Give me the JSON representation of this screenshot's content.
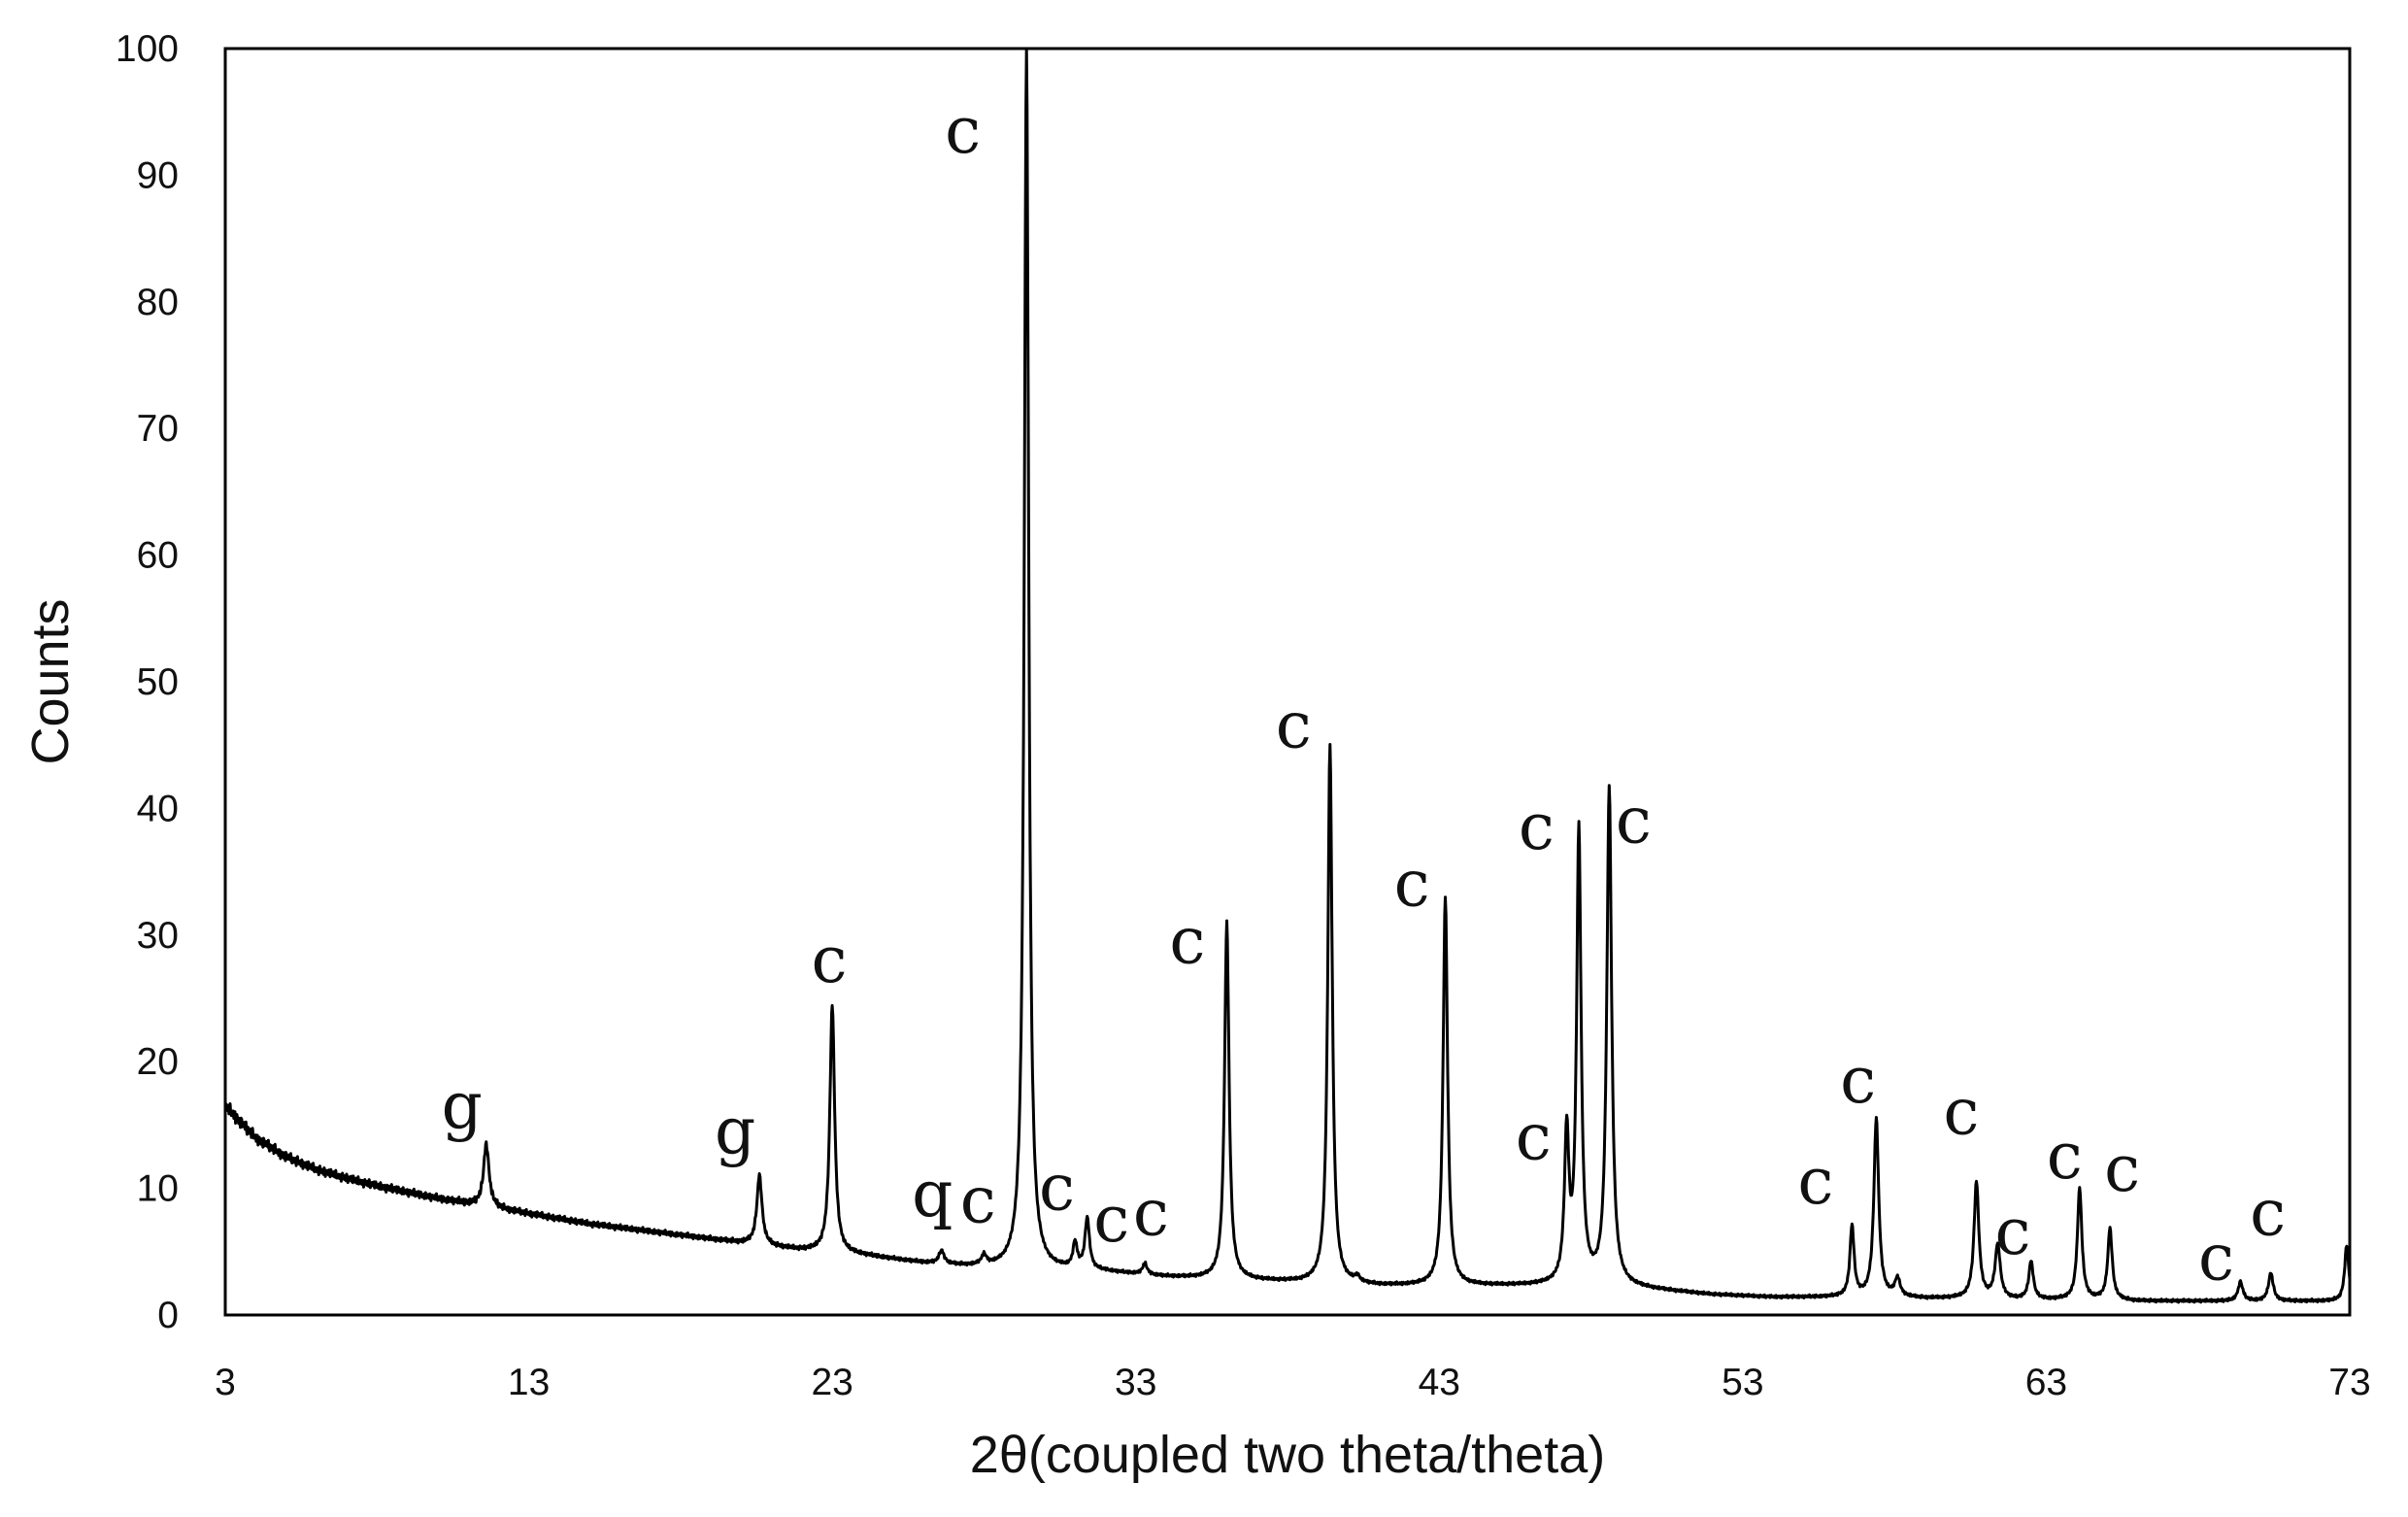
{
  "chart_data": {
    "type": "line",
    "title": "",
    "xlabel": "2θ(coupled two theta/theta)",
    "ylabel": "Counts",
    "xlim": [
      3,
      73
    ],
    "ylim": [
      0,
      100
    ],
    "xticks": [
      "3",
      "13",
      "23",
      "33",
      "43",
      "53",
      "63",
      "73"
    ],
    "yticks": [
      "0",
      "10",
      "20",
      "30",
      "40",
      "50",
      "60",
      "70",
      "80",
      "90",
      "100"
    ],
    "grid": false,
    "legend": "none",
    "line_color": "#000000",
    "baseline": [
      [
        3,
        16.5
      ],
      [
        4,
        14
      ],
      [
        5,
        12.5
      ],
      [
        6,
        11.5
      ],
      [
        7,
        10.8
      ],
      [
        8,
        10.2
      ],
      [
        9,
        9.7
      ],
      [
        10,
        9.2
      ],
      [
        11,
        8.8
      ],
      [
        12,
        8.4
      ],
      [
        13,
        8.0
      ],
      [
        14,
        7.6
      ],
      [
        15,
        7.2
      ],
      [
        16,
        6.9
      ],
      [
        17,
        6.6
      ],
      [
        18,
        6.3
      ],
      [
        19,
        6.0
      ],
      [
        20,
        5.7
      ],
      [
        21,
        5.4
      ],
      [
        22,
        5.1
      ],
      [
        23,
        4.9
      ],
      [
        24,
        4.7
      ],
      [
        25,
        4.4
      ],
      [
        26,
        4.1
      ],
      [
        27,
        3.9
      ],
      [
        28,
        3.7
      ],
      [
        29,
        3.6
      ],
      [
        30,
        3.5
      ],
      [
        31,
        3.5
      ],
      [
        32,
        3.4
      ],
      [
        33,
        3.2
      ],
      [
        34,
        3.0
      ],
      [
        35,
        2.9
      ],
      [
        36,
        2.8
      ],
      [
        37,
        2.7
      ],
      [
        38,
        2.6
      ],
      [
        39,
        2.5
      ],
      [
        40,
        2.4
      ],
      [
        41,
        2.3
      ],
      [
        42,
        2.3
      ],
      [
        43,
        2.3
      ],
      [
        44,
        2.3
      ],
      [
        45,
        2.3
      ],
      [
        46,
        2.3
      ],
      [
        47,
        2.3
      ],
      [
        48,
        2.3
      ],
      [
        49,
        2.2
      ],
      [
        50,
        2.0
      ],
      [
        51,
        1.8
      ],
      [
        52,
        1.6
      ],
      [
        53,
        1.5
      ],
      [
        54,
        1.4
      ],
      [
        55,
        1.4
      ],
      [
        56,
        1.4
      ],
      [
        57,
        1.4
      ],
      [
        58,
        1.4
      ],
      [
        59,
        1.3
      ],
      [
        60,
        1.3
      ],
      [
        61,
        1.3
      ],
      [
        62,
        1.2
      ],
      [
        63,
        1.2
      ],
      [
        64,
        1.2
      ],
      [
        65,
        1.2
      ],
      [
        66,
        1.1
      ],
      [
        67,
        1.1
      ],
      [
        68,
        1.1
      ],
      [
        69,
        1.1
      ],
      [
        70,
        1.1
      ],
      [
        71,
        1.1
      ],
      [
        72,
        1.1
      ],
      [
        73,
        1.1
      ]
    ],
    "peaks": [
      {
        "x": 11.6,
        "y": 13.5,
        "w": 0.16
      },
      {
        "x": 20.6,
        "y": 11.0,
        "w": 0.15
      },
      {
        "x": 23.0,
        "y": 24.5,
        "w": 0.14
      },
      {
        "x": 26.6,
        "y": 5.0,
        "w": 0.15
      },
      {
        "x": 28.0,
        "y": 4.5,
        "w": 0.15
      },
      {
        "x": 29.4,
        "y": 100,
        "w": 0.13
      },
      {
        "x": 31.0,
        "y": 5.5,
        "w": 0.12
      },
      {
        "x": 31.4,
        "y": 7.5,
        "w": 0.13
      },
      {
        "x": 33.3,
        "y": 4.0,
        "w": 0.13
      },
      {
        "x": 36.0,
        "y": 31.0,
        "w": 0.13
      },
      {
        "x": 39.4,
        "y": 45.0,
        "w": 0.13
      },
      {
        "x": 40.3,
        "y": 2.8,
        "w": 0.15
      },
      {
        "x": 43.2,
        "y": 33.0,
        "w": 0.13
      },
      {
        "x": 47.2,
        "y": 14.0,
        "w": 0.13
      },
      {
        "x": 47.6,
        "y": 38.0,
        "w": 0.13
      },
      {
        "x": 48.6,
        "y": 41.5,
        "w": 0.14
      },
      {
        "x": 56.6,
        "y": 7.0,
        "w": 0.12
      },
      {
        "x": 57.4,
        "y": 15.5,
        "w": 0.14
      },
      {
        "x": 58.1,
        "y": 2.8,
        "w": 0.15
      },
      {
        "x": 60.7,
        "y": 10.5,
        "w": 0.14
      },
      {
        "x": 61.4,
        "y": 5.5,
        "w": 0.15
      },
      {
        "x": 62.5,
        "y": 4.2,
        "w": 0.13
      },
      {
        "x": 64.1,
        "y": 10.0,
        "w": 0.13
      },
      {
        "x": 65.1,
        "y": 6.8,
        "w": 0.13
      },
      {
        "x": 69.4,
        "y": 2.6,
        "w": 0.14
      },
      {
        "x": 70.4,
        "y": 3.3,
        "w": 0.14
      },
      {
        "x": 72.9,
        "y": 5.5,
        "w": 0.12
      }
    ],
    "annotations": [
      {
        "text": "g",
        "x": 10.8,
        "y": 16.5
      },
      {
        "text": "g",
        "x": 19.8,
        "y": 14.5
      },
      {
        "text": "c",
        "x": 22.9,
        "y": 28.0
      },
      {
        "text": "q",
        "x": 26.3,
        "y": 9.5
      },
      {
        "text": "c",
        "x": 27.8,
        "y": 9.0
      },
      {
        "text": "c",
        "x": 27.3,
        "y": 93.5
      },
      {
        "text": "c",
        "x": 30.4,
        "y": 10.0
      },
      {
        "text": "c",
        "x": 32.2,
        "y": 7.5
      },
      {
        "text": "c",
        "x": 33.5,
        "y": 8.0
      },
      {
        "text": "c",
        "x": 34.7,
        "y": 29.5
      },
      {
        "text": "c",
        "x": 38.2,
        "y": 46.5
      },
      {
        "text": "c",
        "x": 42.1,
        "y": 34.0
      },
      {
        "text": "c",
        "x": 46.2,
        "y": 38.5
      },
      {
        "text": "c",
        "x": 46.1,
        "y": 14.0
      },
      {
        "text": "c",
        "x": 49.4,
        "y": 39.0
      },
      {
        "text": "c",
        "x": 55.4,
        "y": 10.5
      },
      {
        "text": "c",
        "x": 56.8,
        "y": 18.5
      },
      {
        "text": "c",
        "x": 60.2,
        "y": 16.0
      },
      {
        "text": "c",
        "x": 61.9,
        "y": 6.5
      },
      {
        "text": "c",
        "x": 63.6,
        "y": 12.5
      },
      {
        "text": "c",
        "x": 65.5,
        "y": 11.5
      },
      {
        "text": "c",
        "x": 68.6,
        "y": 4.5
      },
      {
        "text": "c",
        "x": 70.3,
        "y": 8.0
      }
    ]
  }
}
